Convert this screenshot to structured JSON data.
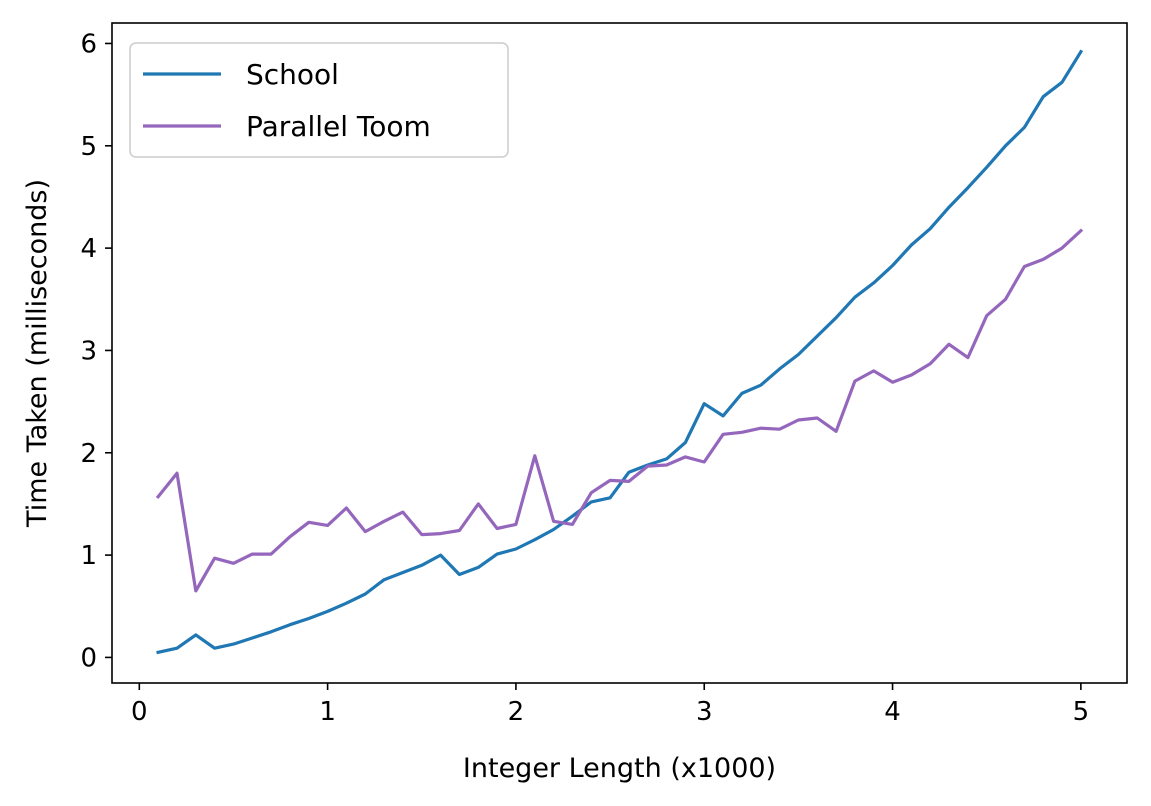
{
  "chart_data": {
    "type": "line",
    "title": "",
    "xlabel": "Integer Length (x1000)",
    "ylabel": "Time Taken (milliseconds)",
    "xlim": [
      -0.145,
      5.245
    ],
    "ylim": [
      -0.25,
      6.2
    ],
    "xticks": [
      0,
      1,
      2,
      3,
      4,
      5
    ],
    "yticks": [
      0,
      1,
      2,
      3,
      4,
      5,
      6
    ],
    "xtick_labels": [
      "0",
      "1",
      "2",
      "3",
      "4",
      "5"
    ],
    "ytick_labels": [
      "0",
      "1",
      "2",
      "3",
      "4",
      "5",
      "6"
    ],
    "grid": false,
    "legend_position": "top-left",
    "x": [
      0.1,
      0.2,
      0.3,
      0.4,
      0.5,
      0.6,
      0.7,
      0.8,
      0.9,
      1.0,
      1.1,
      1.2,
      1.3,
      1.4,
      1.5,
      1.6,
      1.7,
      1.8,
      1.9,
      2.0,
      2.1,
      2.2,
      2.3,
      2.4,
      2.5,
      2.6,
      2.7,
      2.8,
      2.9,
      3.0,
      3.1,
      3.2,
      3.3,
      3.4,
      3.5,
      3.6,
      3.7,
      3.8,
      3.9,
      4.0,
      4.1,
      4.2,
      4.3,
      4.4,
      4.5,
      4.6,
      4.7,
      4.8,
      4.9,
      5.0
    ],
    "series": [
      {
        "name": "School",
        "color": "#1f77b4",
        "values": [
          0.05,
          0.09,
          0.22,
          0.09,
          0.13,
          0.19,
          0.25,
          0.32,
          0.38,
          0.45,
          0.53,
          0.62,
          0.76,
          0.83,
          0.9,
          1.0,
          0.81,
          0.88,
          1.01,
          1.06,
          1.15,
          1.25,
          1.38,
          1.52,
          1.56,
          1.81,
          1.88,
          1.94,
          2.1,
          2.48,
          2.36,
          2.58,
          2.66,
          2.82,
          2.96,
          3.14,
          3.32,
          3.52,
          3.66,
          3.83,
          4.03,
          4.19,
          4.4,
          4.59,
          4.79,
          5.0,
          5.18,
          5.48,
          5.62,
          5.92
        ]
      },
      {
        "name": "Parallel Toom",
        "color": "#9467bd",
        "values": [
          1.57,
          1.8,
          0.65,
          0.97,
          0.92,
          1.01,
          1.01,
          1.18,
          1.32,
          1.29,
          1.46,
          1.23,
          1.33,
          1.42,
          1.2,
          1.21,
          1.24,
          1.5,
          1.26,
          1.3,
          1.97,
          1.33,
          1.3,
          1.61,
          1.73,
          1.72,
          1.87,
          1.88,
          1.96,
          1.91,
          2.18,
          2.2,
          2.24,
          2.23,
          2.32,
          2.34,
          2.21,
          2.7,
          2.8,
          2.69,
          2.76,
          2.87,
          3.06,
          2.93,
          3.34,
          3.5,
          3.82,
          3.89,
          4.0,
          4.17
        ]
      }
    ]
  }
}
